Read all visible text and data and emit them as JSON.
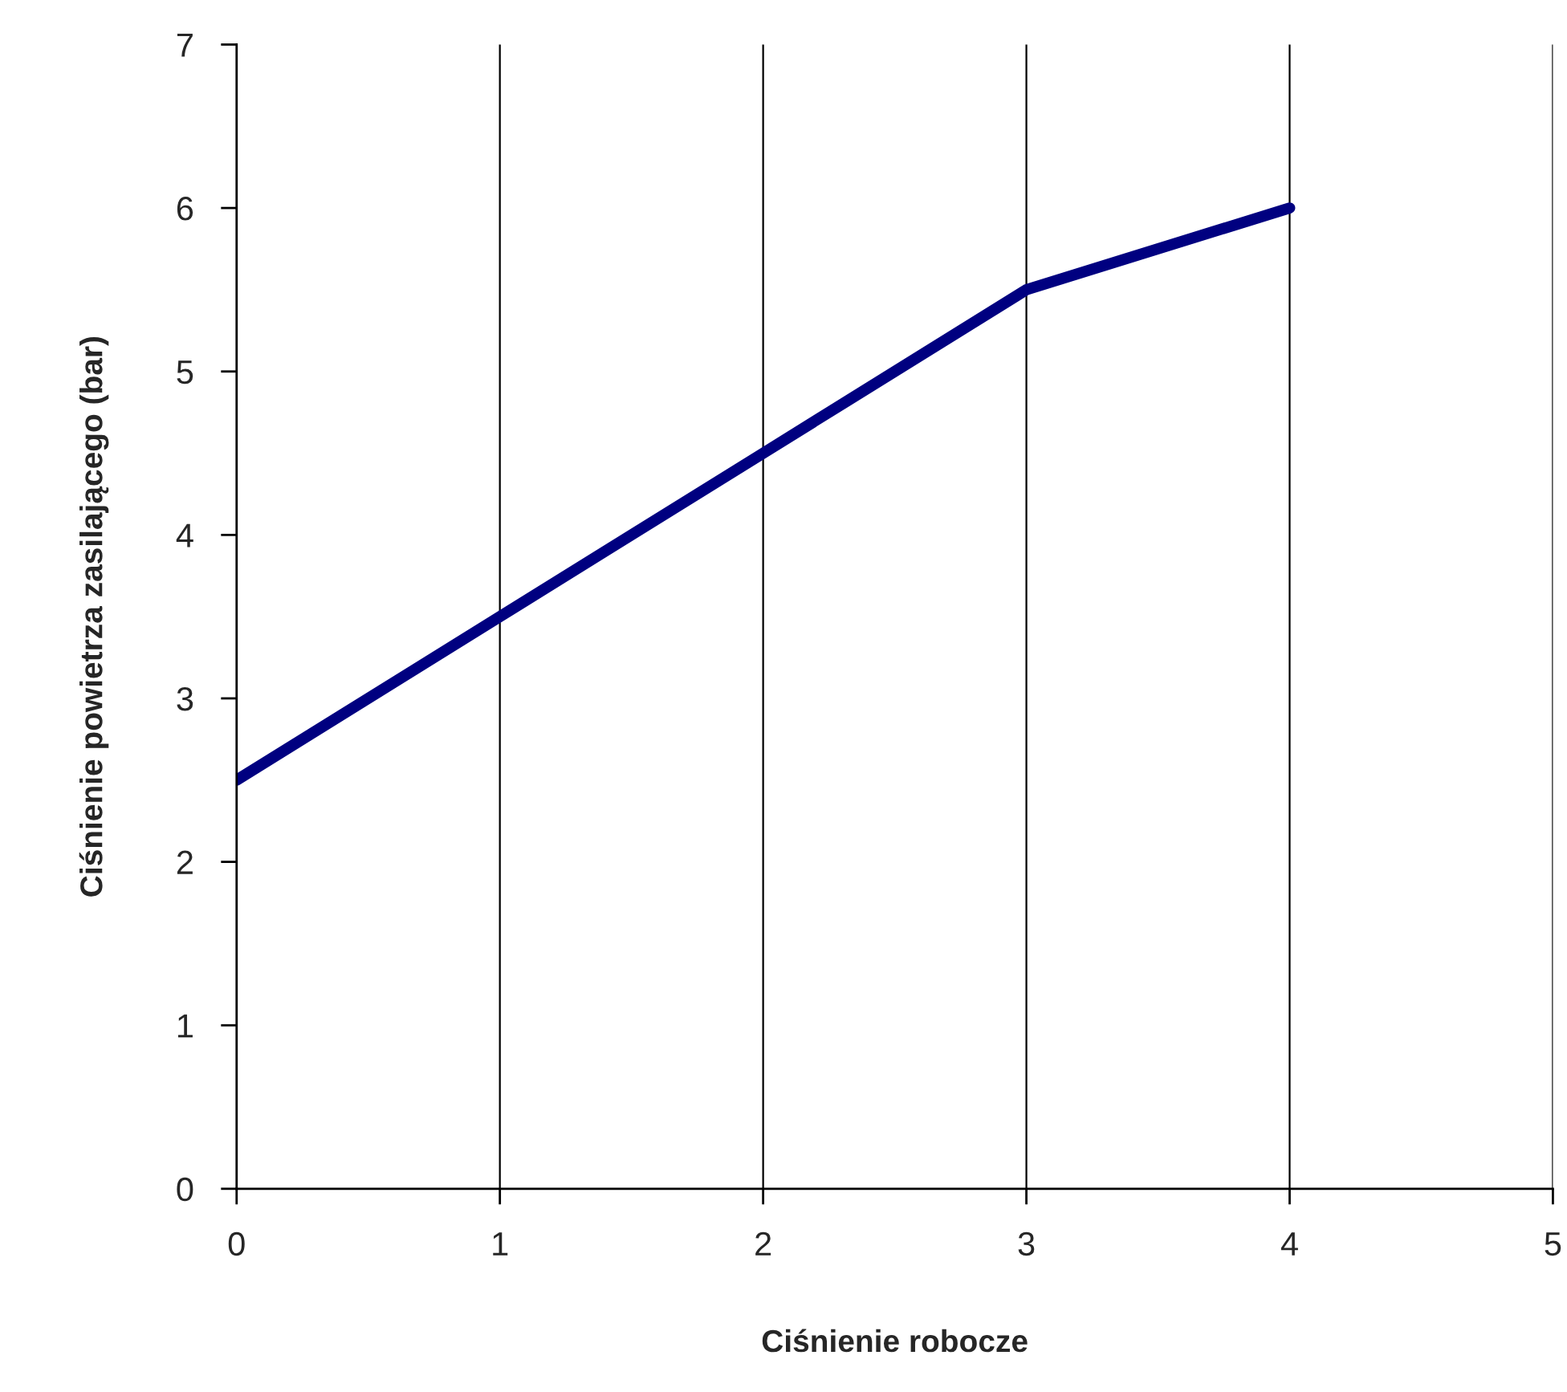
{
  "chart_data": {
    "type": "line",
    "xlabel": "Ciśnienie robocze",
    "ylabel": "Ciśnienie powietrza zasilającego (bar)",
    "x": [
      0,
      1,
      2,
      3,
      4
    ],
    "series": [
      {
        "color": "#000080",
        "values": [
          2.5,
          3.5,
          4.5,
          5.5,
          6
        ]
      }
    ],
    "xlim": [
      0,
      5
    ],
    "xticks": [
      0,
      1,
      2,
      3,
      4,
      5
    ],
    "ylim": [
      0,
      7
    ],
    "yticks": [
      0,
      1,
      2,
      3,
      4,
      5,
      6,
      7
    ],
    "grid": "x",
    "legend": false,
    "marker": "none",
    "line_style": "solid"
  }
}
